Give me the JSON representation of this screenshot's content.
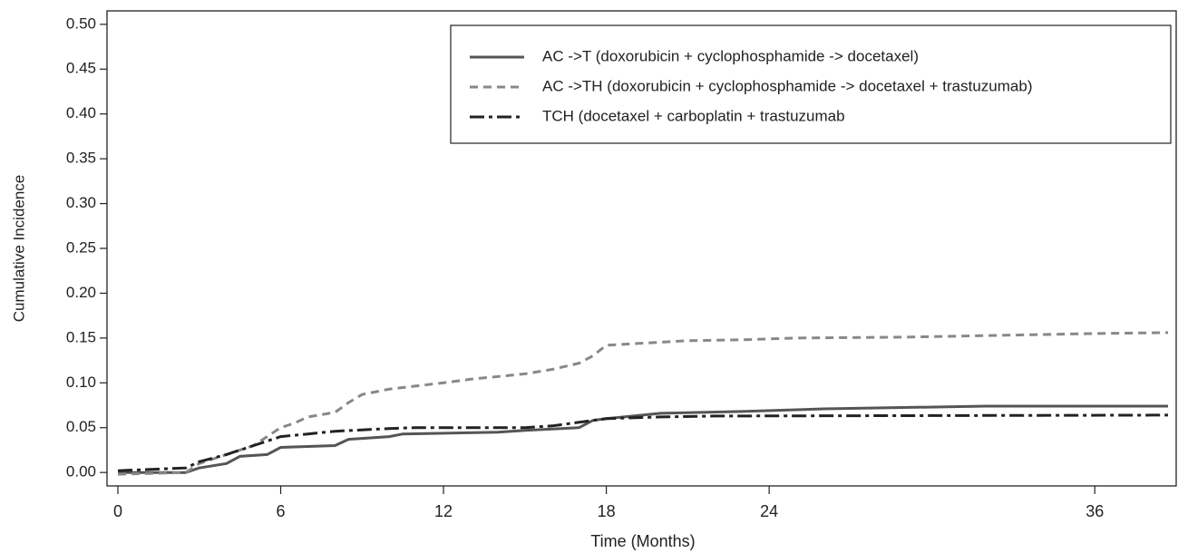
{
  "chart_data": {
    "type": "line",
    "x_label": "Time (Months)",
    "y_label": "Cumulative Incidence",
    "xlim": [
      -0.4,
      39
    ],
    "ylim": [
      -0.015,
      0.515
    ],
    "xticks": [
      0,
      6,
      12,
      18,
      24,
      36
    ],
    "yticks": [
      {
        "value": 0,
        "label": "0.00"
      },
      0.05,
      {
        "value": 0.1,
        "label": "0.10"
      },
      0.15,
      {
        "value": 0.2,
        "label": "0.20"
      },
      0.25,
      {
        "value": 0.3,
        "label": "0.30"
      },
      0.35,
      {
        "value": 0.4,
        "label": "0.40"
      },
      0.45,
      {
        "value": 0.5,
        "label": "0.50"
      }
    ],
    "legend": "top-right",
    "series": [
      {
        "name": "AC ->T (doxorubicin + cyclophosphamide -> docetaxel)",
        "color": "#555555",
        "style": "solid",
        "x": [
          0,
          2.5,
          3,
          4,
          4.5,
          5.5,
          6,
          8,
          8.5,
          10,
          10.5,
          14,
          15,
          17,
          17.5,
          18,
          19,
          20,
          23,
          26,
          32,
          38.7
        ],
        "values": [
          0,
          0,
          0.005,
          0.01,
          0.018,
          0.02,
          0.028,
          0.03,
          0.037,
          0.04,
          0.043,
          0.045,
          0.047,
          0.05,
          0.058,
          0.06,
          0.063,
          0.066,
          0.068,
          0.071,
          0.074,
          0.074
        ]
      },
      {
        "name": "AC ->TH (doxorubicin + cyclophosphamide -> docetaxel + trastuzumab)",
        "color": "#888888",
        "style": "dashed",
        "x": [
          0,
          2.5,
          3,
          4,
          5,
          5.5,
          6,
          6.5,
          7,
          8,
          8.5,
          9,
          10,
          12,
          13,
          15,
          16,
          17,
          17.5,
          18,
          21,
          23,
          25,
          29,
          36,
          38.7
        ],
        "values": [
          -0.002,
          0,
          0.01,
          0.02,
          0.03,
          0.04,
          0.05,
          0.055,
          0.062,
          0.067,
          0.078,
          0.087,
          0.093,
          0.1,
          0.104,
          0.11,
          0.115,
          0.122,
          0.13,
          0.142,
          0.147,
          0.148,
          0.15,
          0.151,
          0.155,
          0.156
        ]
      },
      {
        "name": "TCH (docetaxel + carboplatin + trastuzumab",
        "color": "#222222",
        "style": "dashdot",
        "x": [
          0,
          2.5,
          3,
          4,
          5,
          6,
          7,
          8,
          10,
          11,
          15,
          16,
          17.5,
          18,
          20,
          22,
          38.7
        ],
        "values": [
          0.002,
          0.005,
          0.012,
          0.02,
          0.03,
          0.04,
          0.043,
          0.046,
          0.049,
          0.05,
          0.05,
          0.052,
          0.058,
          0.06,
          0.062,
          0.063,
          0.064
        ]
      }
    ]
  }
}
